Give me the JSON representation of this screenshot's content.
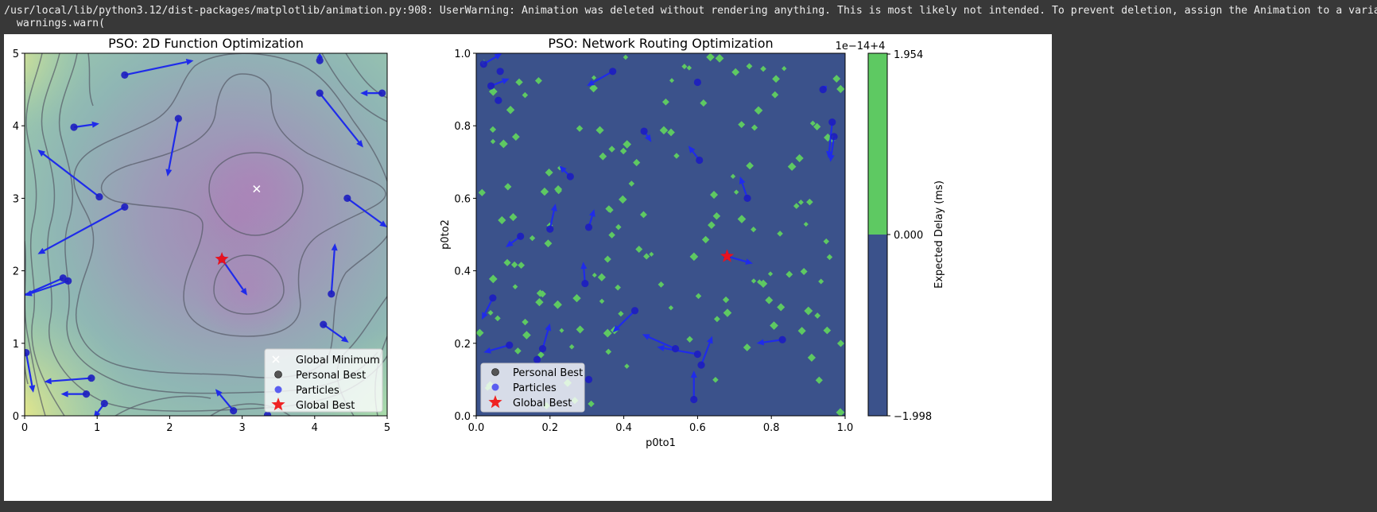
{
  "console": {
    "line1": "/usr/local/lib/python3.12/dist-packages/matplotlib/animation.py:908: UserWarning: Animation was deleted without rendering anything. This is most likely not intended. To prevent deletion, assign the Animation to a variable, e",
    "line2": "  warnings.warn("
  },
  "chart_data": [
    {
      "type": "scatter",
      "title": "PSO: 2D Function Optimization",
      "xlim": [
        0,
        5
      ],
      "ylim": [
        0,
        5
      ],
      "xticks": [
        "0",
        "1",
        "2",
        "3",
        "4",
        "5"
      ],
      "yticks": [
        "0",
        "1",
        "2",
        "3",
        "4",
        "5"
      ],
      "background": "filled contour of objective function (viridis-like, purple minimum) with dark contour lines",
      "global_minimum": [
        3.2,
        3.13
      ],
      "global_best": [
        2.72,
        2.16
      ],
      "particles": [
        {
          "x": 1.38,
          "y": 4.7,
          "dx": 0.95,
          "dy": 0.2
        },
        {
          "x": 0.68,
          "y": 3.98,
          "dx": 0.35,
          "dy": 0.05
        },
        {
          "x": 2.12,
          "y": 4.1,
          "dx": -0.15,
          "dy": -0.8
        },
        {
          "x": 1.03,
          "y": 3.02,
          "dx": -0.85,
          "dy": 0.65
        },
        {
          "x": 1.38,
          "y": 2.88,
          "dx": -1.2,
          "dy": -0.65
        },
        {
          "x": 4.07,
          "y": 4.9,
          "dx": 0.0,
          "dy": 0.1
        },
        {
          "x": 4.93,
          "y": 4.45,
          "dx": -0.3,
          "dy": 0.0
        },
        {
          "x": 4.07,
          "y": 4.45,
          "dx": 0.6,
          "dy": -0.75
        },
        {
          "x": 4.45,
          "y": 3.0,
          "dx": 0.55,
          "dy": -0.4
        },
        {
          "x": 0.53,
          "y": 1.9,
          "dx": -0.8,
          "dy": -0.35
        },
        {
          "x": 0.6,
          "y": 1.86,
          "dx": -0.6,
          "dy": -0.2
        },
        {
          "x": 4.23,
          "y": 1.68,
          "dx": 0.05,
          "dy": 0.7
        },
        {
          "x": 4.12,
          "y": 1.26,
          "dx": 0.35,
          "dy": -0.25
        },
        {
          "x": 0.02,
          "y": 0.87,
          "dx": 0.1,
          "dy": -0.55
        },
        {
          "x": 0.92,
          "y": 0.52,
          "dx": -0.65,
          "dy": -0.05
        },
        {
          "x": 0.85,
          "y": 0.3,
          "dx": -0.35,
          "dy": 0.0
        },
        {
          "x": 1.1,
          "y": 0.17,
          "dx": -0.15,
          "dy": -0.2
        },
        {
          "x": 2.88,
          "y": 0.07,
          "dx": -0.25,
          "dy": 0.3
        },
        {
          "x": 3.35,
          "y": 0.01,
          "dx": 0.0,
          "dy": 0.0
        },
        {
          "x": 2.72,
          "y": 2.16,
          "dx": 0.35,
          "dy": -0.5
        }
      ],
      "legend": [
        "Global Minimum",
        "Personal Best",
        "Particles",
        "Global Best"
      ],
      "legend_loc": "lower right"
    },
    {
      "type": "scatter",
      "title": "PSO: Network Routing Optimization",
      "xlabel": "p0to1",
      "ylabel": "p0to2",
      "xlim": [
        0,
        1
      ],
      "ylim": [
        0,
        1
      ],
      "xticks": [
        "0.0",
        "0.2",
        "0.4",
        "0.6",
        "0.8",
        "1.0"
      ],
      "yticks": [
        "0.0",
        "0.2",
        "0.4",
        "0.6",
        "0.8",
        "1.0"
      ],
      "background_colors": [
        "#3b528b",
        "#5ec962"
      ],
      "global_best": [
        0.68,
        0.44
      ],
      "particles": [
        {
          "x": 0.02,
          "y": 0.97,
          "dx": 0.05,
          "dy": 0.03
        },
        {
          "x": 0.04,
          "y": 0.91,
          "dx": 0.05,
          "dy": 0.02
        },
        {
          "x": 0.065,
          "y": 0.95,
          "dx": 0.0,
          "dy": 0.0
        },
        {
          "x": 0.06,
          "y": 0.87,
          "dx": 0.0,
          "dy": 0.0
        },
        {
          "x": 0.37,
          "y": 0.95,
          "dx": -0.07,
          "dy": -0.04
        },
        {
          "x": 0.6,
          "y": 0.92,
          "dx": 0.0,
          "dy": 0.0
        },
        {
          "x": 0.94,
          "y": 0.9,
          "dx": 0.01,
          "dy": 0.01
        },
        {
          "x": 0.965,
          "y": 0.81,
          "dx": -0.01,
          "dy": -0.1
        },
        {
          "x": 0.97,
          "y": 0.77,
          "dx": -0.01,
          "dy": -0.07
        },
        {
          "x": 0.455,
          "y": 0.785,
          "dx": 0.02,
          "dy": -0.03
        },
        {
          "x": 0.605,
          "y": 0.705,
          "dx": -0.03,
          "dy": 0.04
        },
        {
          "x": 0.255,
          "y": 0.66,
          "dx": -0.03,
          "dy": 0.03
        },
        {
          "x": 0.735,
          "y": 0.6,
          "dx": -0.02,
          "dy": 0.06
        },
        {
          "x": 0.2,
          "y": 0.515,
          "dx": 0.015,
          "dy": 0.07
        },
        {
          "x": 0.305,
          "y": 0.52,
          "dx": 0.015,
          "dy": 0.05
        },
        {
          "x": 0.12,
          "y": 0.495,
          "dx": -0.04,
          "dy": -0.03
        },
        {
          "x": 0.295,
          "y": 0.365,
          "dx": -0.005,
          "dy": 0.06
        },
        {
          "x": 0.045,
          "y": 0.325,
          "dx": -0.03,
          "dy": -0.06
        },
        {
          "x": 0.43,
          "y": 0.29,
          "dx": -0.06,
          "dy": -0.06
        },
        {
          "x": 0.09,
          "y": 0.195,
          "dx": -0.07,
          "dy": -0.02
        },
        {
          "x": 0.18,
          "y": 0.185,
          "dx": 0.02,
          "dy": 0.07
        },
        {
          "x": 0.165,
          "y": 0.155,
          "dx": 0.0,
          "dy": 0.0
        },
        {
          "x": 0.305,
          "y": 0.1,
          "dx": 0.0,
          "dy": 0.0
        },
        {
          "x": 0.54,
          "y": 0.185,
          "dx": -0.09,
          "dy": 0.04
        },
        {
          "x": 0.6,
          "y": 0.17,
          "dx": -0.11,
          "dy": 0.02
        },
        {
          "x": 0.61,
          "y": 0.14,
          "dx": 0.03,
          "dy": 0.08
        },
        {
          "x": 0.59,
          "y": 0.045,
          "dx": 0.0,
          "dy": 0.08
        },
        {
          "x": 0.83,
          "y": 0.21,
          "dx": -0.07,
          "dy": -0.01
        },
        {
          "x": 0.68,
          "y": 0.44,
          "dx": 0.07,
          "dy": -0.02
        }
      ],
      "legend": [
        "Personal Best",
        "Particles",
        "Global Best"
      ],
      "legend_loc": "lower left",
      "colorbar": {
        "label": "Expected Delay (ms)",
        "offset_text": "1e−14+4",
        "ticks": [
          "1.954",
          "0.000",
          "−1.998"
        ]
      }
    }
  ]
}
